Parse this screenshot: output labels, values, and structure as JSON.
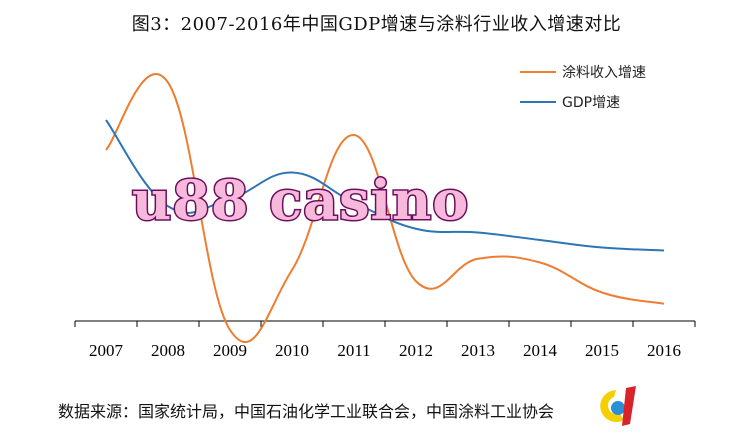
{
  "colors": {
    "industry_revenue": "#ed7d31",
    "gdp": "#2e75b6",
    "axis": "#000000",
    "watermark_fill": "#f6b9dc",
    "watermark_stroke": "#6b0f5c"
  },
  "watermark": {
    "text": "u88 casino"
  },
  "source_note": "数据来源：国家统计局，中国石油化学工业联合会，中国涂料工业协会",
  "logo": {
    "icon": "coatings-logo-icon",
    "colors": [
      "#f5d000",
      "#2b8fd6",
      "#d8232a"
    ]
  },
  "chart_data": {
    "type": "line",
    "title": "图3：2007-2016年中国GDP增速与涂料行业收入增速对比",
    "x": [
      "2007",
      "2008",
      "2009",
      "2010",
      "2011",
      "2012",
      "2013",
      "2014",
      "2015",
      "2016"
    ],
    "series": [
      {
        "name": "涂料收入增速",
        "values": [
          18.0,
          27.0,
          -6.0,
          2.0,
          20.0,
          0.5,
          3.5,
          3.0,
          -1.0,
          -2.5
        ]
      },
      {
        "name": "GDP增速",
        "values": [
          22.0,
          10.5,
          11.5,
          15.0,
          11.0,
          7.5,
          7.0,
          6.0,
          5.0,
          4.6
        ]
      }
    ],
    "ylim": [
      -6.0,
      30.0
    ],
    "y_axis_visible": false,
    "grid": false,
    "legend_position": "top-right"
  }
}
